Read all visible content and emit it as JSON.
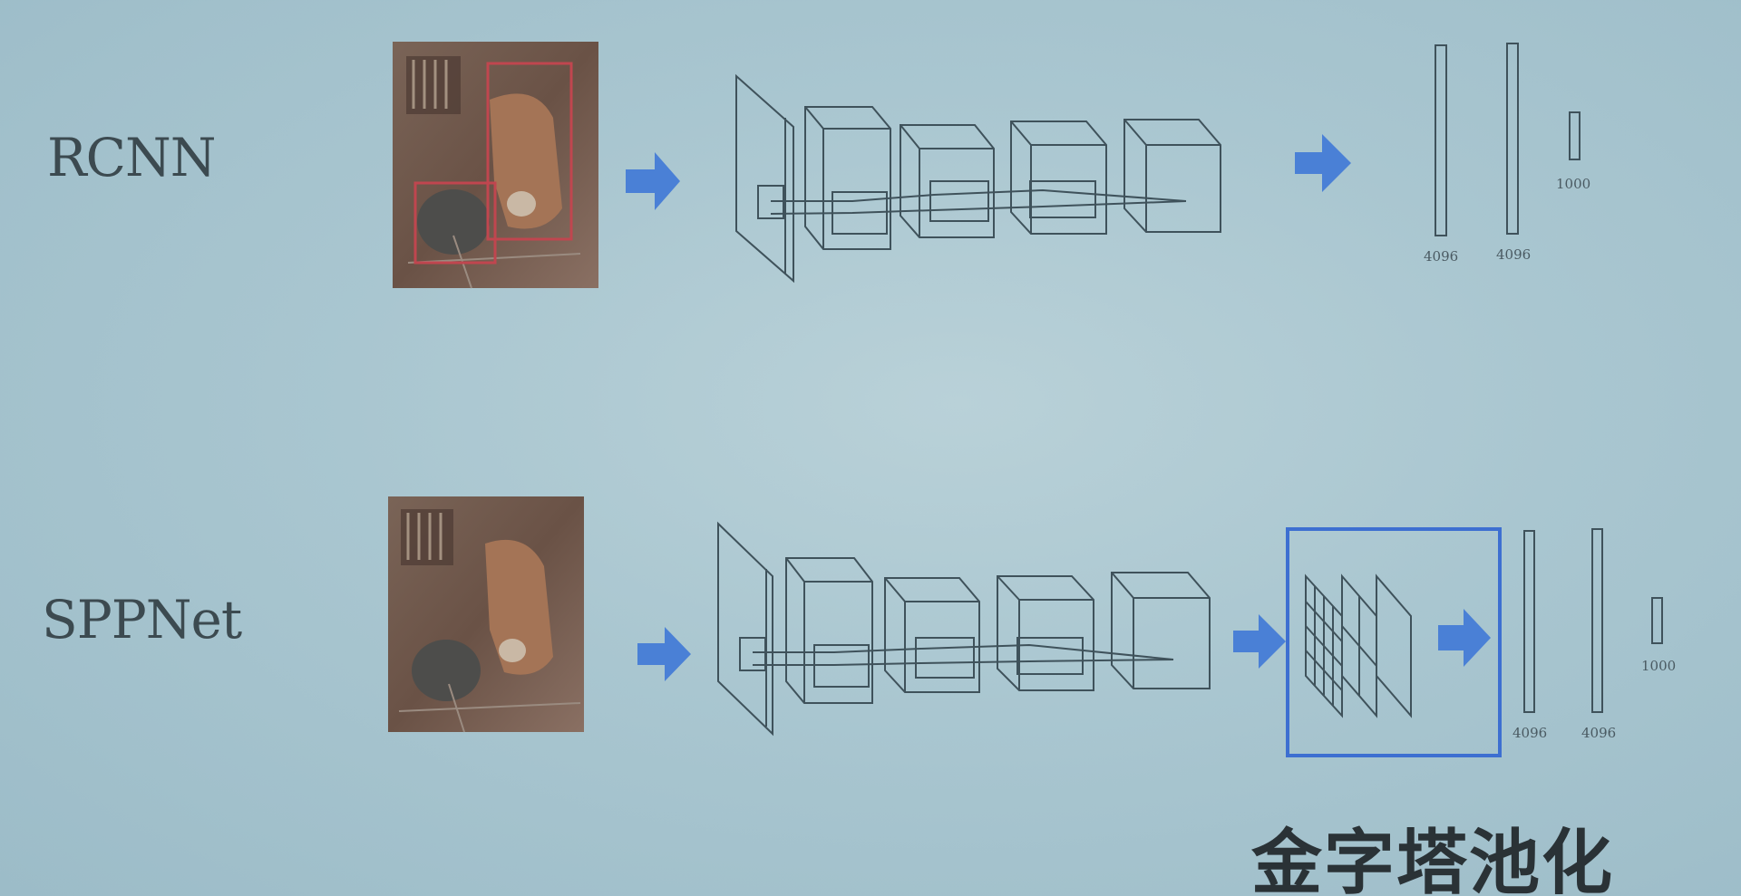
{
  "rows": [
    {
      "label": "RCNN",
      "fc_layers": [
        "4096",
        "4096",
        "1000"
      ]
    },
    {
      "label": "SPPNet",
      "fc_layers": [
        "4096",
        "4096",
        "1000"
      ]
    }
  ],
  "caption": "金字塔池化",
  "colors": {
    "arrow": "#4a80d6",
    "highlight_box": "#3d6fd1",
    "proposal_box": "#c0464f",
    "outline": "#3f525b"
  },
  "icons": {
    "arrow": "right-arrow-icon"
  }
}
